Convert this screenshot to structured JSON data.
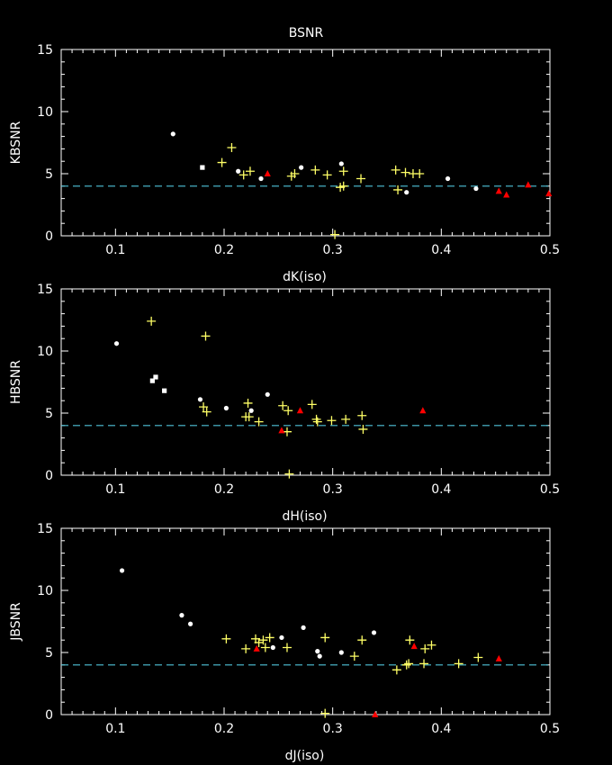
{
  "title": "BSNR",
  "chart_data": [
    {
      "type": "scatter",
      "xlabel": "dK(iso)",
      "ylabel": "KBSNR",
      "xlim": [
        0.05,
        0.5
      ],
      "ylim": [
        0,
        15
      ],
      "xticks": [
        "0.1",
        "0.2",
        "0.3",
        "0.4",
        "0.5"
      ],
      "yticks": [
        "0",
        "5",
        "10",
        "15"
      ],
      "threshold": 4,
      "series": [
        {
          "marker": "circle",
          "color": "#ffffff",
          "points": [
            [
              0.153,
              8.2
            ],
            [
              0.213,
              5.2
            ],
            [
              0.234,
              4.6
            ],
            [
              0.271,
              5.5
            ],
            [
              0.308,
              5.8
            ],
            [
              0.368,
              3.5
            ],
            [
              0.406,
              4.6
            ],
            [
              0.432,
              3.8
            ]
          ]
        },
        {
          "marker": "square",
          "color": "#ffffff",
          "points": [
            [
              0.18,
              5.5
            ]
          ]
        },
        {
          "marker": "plus",
          "color": "#ffff66",
          "points": [
            [
              0.198,
              5.9
            ],
            [
              0.207,
              7.1
            ],
            [
              0.218,
              4.9
            ],
            [
              0.224,
              5.2
            ],
            [
              0.262,
              4.8
            ],
            [
              0.265,
              5.0
            ],
            [
              0.284,
              5.3
            ],
            [
              0.295,
              4.9
            ],
            [
              0.307,
              3.9
            ],
            [
              0.31,
              4.0
            ],
            [
              0.31,
              5.2
            ],
            [
              0.326,
              4.6
            ],
            [
              0.358,
              5.3
            ],
            [
              0.36,
              3.7
            ],
            [
              0.367,
              5.1
            ],
            [
              0.374,
              5.0
            ],
            [
              0.38,
              5.0
            ],
            [
              0.302,
              0.1
            ]
          ]
        },
        {
          "marker": "triangle",
          "color": "#ff0000",
          "points": [
            [
              0.24,
              5.0
            ],
            [
              0.453,
              3.6
            ],
            [
              0.46,
              3.3
            ],
            [
              0.48,
              4.1
            ],
            [
              0.499,
              3.4
            ]
          ]
        }
      ]
    },
    {
      "type": "scatter",
      "xlabel": "dH(iso)",
      "ylabel": "HBSNR",
      "xlim": [
        0.05,
        0.5
      ],
      "ylim": [
        0,
        15
      ],
      "xticks": [
        "0.1",
        "0.2",
        "0.3",
        "0.4",
        "0.5"
      ],
      "yticks": [
        "0",
        "5",
        "10",
        "15"
      ],
      "threshold": 4,
      "series": [
        {
          "marker": "circle",
          "color": "#ffffff",
          "points": [
            [
              0.101,
              10.6
            ],
            [
              0.178,
              6.1
            ],
            [
              0.202,
              5.4
            ],
            [
              0.225,
              5.2
            ],
            [
              0.24,
              6.5
            ]
          ]
        },
        {
          "marker": "square",
          "color": "#ffffff",
          "points": [
            [
              0.134,
              7.6
            ],
            [
              0.137,
              7.9
            ],
            [
              0.145,
              6.8
            ]
          ]
        },
        {
          "marker": "plus",
          "color": "#ffff66",
          "points": [
            [
              0.133,
              12.4
            ],
            [
              0.183,
              11.2
            ],
            [
              0.181,
              5.5
            ],
            [
              0.184,
              5.1
            ],
            [
              0.22,
              4.7
            ],
            [
              0.222,
              5.8
            ],
            [
              0.223,
              4.7
            ],
            [
              0.232,
              4.3
            ],
            [
              0.254,
              5.6
            ],
            [
              0.258,
              3.5
            ],
            [
              0.259,
              5.2
            ],
            [
              0.281,
              5.7
            ],
            [
              0.285,
              4.5
            ],
            [
              0.286,
              4.3
            ],
            [
              0.299,
              4.4
            ],
            [
              0.312,
              4.5
            ],
            [
              0.327,
              4.8
            ],
            [
              0.328,
              3.7
            ],
            [
              0.26,
              0.1
            ]
          ]
        },
        {
          "marker": "triangle",
          "color": "#ff0000",
          "points": [
            [
              0.253,
              3.6
            ],
            [
              0.27,
              5.2
            ],
            [
              0.383,
              5.2
            ]
          ]
        }
      ]
    },
    {
      "type": "scatter",
      "xlabel": "dJ(iso)",
      "ylabel": "JBSNR",
      "xlim": [
        0.05,
        0.5
      ],
      "ylim": [
        0,
        15
      ],
      "xticks": [
        "0.1",
        "0.2",
        "0.3",
        "0.4",
        "0.5"
      ],
      "yticks": [
        "0",
        "5",
        "10",
        "15"
      ],
      "threshold": 4,
      "series": [
        {
          "marker": "circle",
          "color": "#ffffff",
          "points": [
            [
              0.106,
              11.6
            ],
            [
              0.161,
              8.0
            ],
            [
              0.169,
              7.3
            ],
            [
              0.245,
              5.4
            ],
            [
              0.253,
              6.2
            ],
            [
              0.273,
              7.0
            ],
            [
              0.286,
              5.1
            ],
            [
              0.288,
              4.7
            ],
            [
              0.308,
              5.0
            ],
            [
              0.338,
              6.6
            ]
          ]
        },
        {
          "marker": "plus",
          "color": "#ffff66",
          "points": [
            [
              0.202,
              6.1
            ],
            [
              0.22,
              5.3
            ],
            [
              0.229,
              6.1
            ],
            [
              0.232,
              5.8
            ],
            [
              0.236,
              6.0
            ],
            [
              0.238,
              5.4
            ],
            [
              0.242,
              6.2
            ],
            [
              0.258,
              5.4
            ],
            [
              0.293,
              6.2
            ],
            [
              0.32,
              4.7
            ],
            [
              0.327,
              6.0
            ],
            [
              0.359,
              3.6
            ],
            [
              0.368,
              4.0
            ],
            [
              0.37,
              4.1
            ],
            [
              0.371,
              6.0
            ],
            [
              0.384,
              4.1
            ],
            [
              0.385,
              5.3
            ],
            [
              0.391,
              5.6
            ],
            [
              0.416,
              4.1
            ],
            [
              0.434,
              4.6
            ],
            [
              0.293,
              0.1
            ]
          ]
        },
        {
          "marker": "triangle",
          "color": "#ff0000",
          "points": [
            [
              0.23,
              5.3
            ],
            [
              0.375,
              5.5
            ],
            [
              0.453,
              4.5
            ],
            [
              0.339,
              0.0
            ]
          ]
        }
      ]
    }
  ]
}
